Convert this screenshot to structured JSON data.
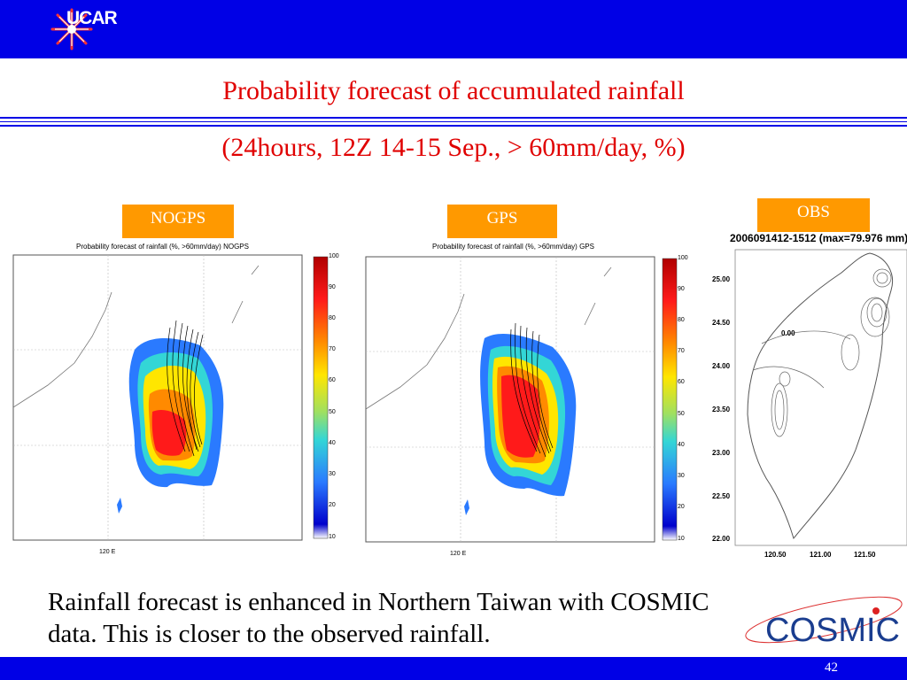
{
  "header": {
    "logo_text": "UCAR"
  },
  "title": "Probability forecast of accumulated rainfall",
  "subtitle": "(24hours, 12Z 14-15 Sep., > 60mm/day, %)",
  "labels": {
    "nogps": "NOGPS",
    "gps": "GPS",
    "obs": "OBS"
  },
  "panels": {
    "nogps_title": "Probability forecast of rainfall (%, >60mm/day)  NOGPS",
    "gps_title": "Probability forecast of rainfall (%, >60mm/day)  GPS",
    "xlabel": "120  E",
    "colorbar_ticks": [
      "100",
      "90",
      "80",
      "70",
      "60",
      "50",
      "40",
      "30",
      "20",
      "10"
    ]
  },
  "obs": {
    "header": "2006091412-1512 (max=79.976 mm)",
    "yticks": [
      "25.00",
      "24.50",
      "24.00",
      "23.50",
      "23.00",
      "22.50",
      "22.00"
    ],
    "xticks": [
      "120.50",
      "121.00",
      "121.50"
    ],
    "contour_label": "0.00"
  },
  "body_text": "Rainfall forecast is enhanced in Northern Taiwan with COSMIC data. This is closer to the observed rainfall.",
  "cosmic_logo": "COSMIC",
  "page_number": "42",
  "colors": {
    "bar": "#0000e6",
    "title": "#e00000",
    "label_bg": "#ff9900"
  }
}
